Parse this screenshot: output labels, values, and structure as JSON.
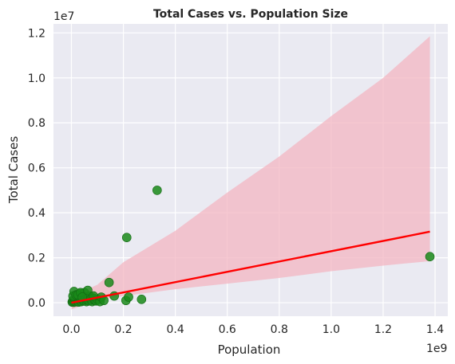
{
  "chart_data": {
    "type": "scatter",
    "title": "Total Cases vs. Population Size",
    "xlabel": "Population",
    "ylabel": "Total Cases",
    "x_multiplier": "1e9",
    "y_multiplier": "1e7",
    "xlim": [
      -0.069,
      1.449
    ],
    "ylim": [
      -0.06,
      1.24
    ],
    "x_ticks": [
      0.0,
      0.2,
      0.4,
      0.6,
      0.8,
      1.0,
      1.2,
      1.4
    ],
    "x_tick_labels": [
      "0.0",
      "0.2",
      "0.4",
      "0.6",
      "0.8",
      "1.0",
      "1.2",
      "1.4"
    ],
    "y_ticks": [
      0.0,
      0.2,
      0.4,
      0.6,
      0.8,
      1.0,
      1.2
    ],
    "y_tick_labels": [
      "0.0",
      "0.2",
      "0.4",
      "0.6",
      "0.8",
      "1.0",
      "1.2"
    ],
    "grid": true,
    "background": "#eaeaf2",
    "point_color": "#1a8a1a",
    "line_color": "#ff0000",
    "band_color": "#f3b6c2",
    "points": [
      {
        "x": 0.003,
        "y": 0.003
      },
      {
        "x": 0.005,
        "y": 0.008
      },
      {
        "x": 0.008,
        "y": 0.002
      },
      {
        "x": 0.01,
        "y": 0.015
      },
      {
        "x": 0.012,
        "y": 0.005
      },
      {
        "x": 0.015,
        "y": 0.01
      },
      {
        "x": 0.018,
        "y": 0.004
      },
      {
        "x": 0.02,
        "y": 0.02
      },
      {
        "x": 0.022,
        "y": 0.008
      },
      {
        "x": 0.025,
        "y": 0.012
      },
      {
        "x": 0.028,
        "y": 0.003
      },
      {
        "x": 0.03,
        "y": 0.018
      },
      {
        "x": 0.032,
        "y": 0.04
      },
      {
        "x": 0.035,
        "y": 0.01
      },
      {
        "x": 0.038,
        "y": 0.005
      },
      {
        "x": 0.04,
        "y": 0.015
      },
      {
        "x": 0.045,
        "y": 0.03
      },
      {
        "x": 0.048,
        "y": 0.008
      },
      {
        "x": 0.05,
        "y": 0.045
      },
      {
        "x": 0.055,
        "y": 0.02
      },
      {
        "x": 0.058,
        "y": 0.005
      },
      {
        "x": 0.06,
        "y": 0.012
      },
      {
        "x": 0.065,
        "y": 0.025
      },
      {
        "x": 0.068,
        "y": 0.008
      },
      {
        "x": 0.07,
        "y": 0.03
      },
      {
        "x": 0.075,
        "y": 0.015
      },
      {
        "x": 0.08,
        "y": 0.005
      },
      {
        "x": 0.085,
        "y": 0.02
      },
      {
        "x": 0.09,
        "y": 0.01
      },
      {
        "x": 0.095,
        "y": 0.008
      },
      {
        "x": 0.1,
        "y": 0.015
      },
      {
        "x": 0.11,
        "y": 0.005
      },
      {
        "x": 0.115,
        "y": 0.025
      },
      {
        "x": 0.125,
        "y": 0.01
      },
      {
        "x": 0.006,
        "y": 0.03
      },
      {
        "x": 0.01,
        "y": 0.05
      },
      {
        "x": 0.018,
        "y": 0.035
      },
      {
        "x": 0.025,
        "y": 0.035
      },
      {
        "x": 0.035,
        "y": 0.045
      },
      {
        "x": 0.042,
        "y": 0.025
      },
      {
        "x": 0.063,
        "y": 0.055
      },
      {
        "x": 0.085,
        "y": 0.03
      },
      {
        "x": 0.145,
        "y": 0.09
      },
      {
        "x": 0.165,
        "y": 0.03
      },
      {
        "x": 0.21,
        "y": 0.01
      },
      {
        "x": 0.213,
        "y": 0.29
      },
      {
        "x": 0.22,
        "y": 0.025
      },
      {
        "x": 0.27,
        "y": 0.015
      },
      {
        "x": 0.33,
        "y": 0.5
      },
      {
        "x": 1.38,
        "y": 0.205
      }
    ],
    "regression_line": {
      "x": [
        0.0,
        1.38
      ],
      "y": [
        0.0,
        0.316
      ]
    },
    "confidence_band": {
      "x": [
        0.0,
        0.1,
        0.2,
        0.3,
        0.4,
        0.6,
        0.8,
        1.0,
        1.2,
        1.38
      ],
      "upper": [
        0.03,
        0.08,
        0.18,
        0.25,
        0.32,
        0.49,
        0.65,
        0.83,
        1.0,
        1.185
      ],
      "lower": [
        -0.03,
        0.01,
        0.03,
        0.045,
        0.06,
        0.085,
        0.11,
        0.14,
        0.165,
        0.185
      ]
    }
  }
}
